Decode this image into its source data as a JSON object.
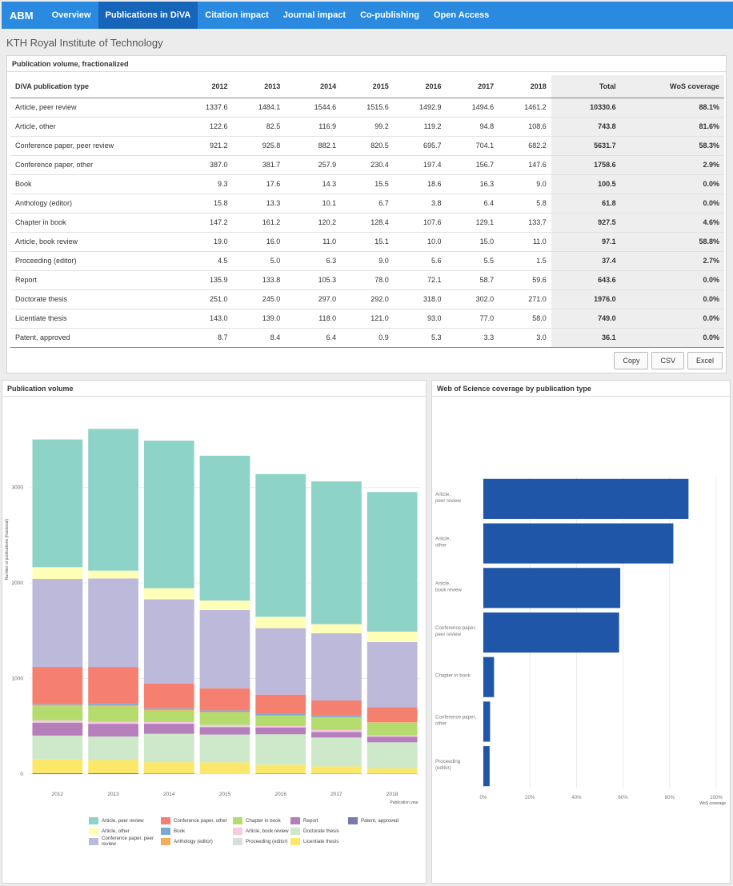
{
  "nav": {
    "brand": "ABM",
    "tabs": [
      "Overview",
      "Publications in DiVA",
      "Citation impact",
      "Journal impact",
      "Co-publishing",
      "Open Access"
    ],
    "active_tab": "Publications in DiVA"
  },
  "institution": "KTH Royal Institute of Technology",
  "table_panel": {
    "title": "Publication volume, fractionalized",
    "headers": [
      "DiVA publication type",
      "2012",
      "2013",
      "2014",
      "2015",
      "2016",
      "2017",
      "2018",
      "Total",
      "WoS coverage"
    ],
    "rows": [
      [
        "Article, peer review",
        "1337.6",
        "1484.1",
        "1544.6",
        "1515.6",
        "1492.9",
        "1494.6",
        "1461.2",
        "10330.6",
        "88.1%"
      ],
      [
        "Article, other",
        "122.6",
        "82.5",
        "116.9",
        "99.2",
        "119.2",
        "94.8",
        "108.6",
        "743.8",
        "81.6%"
      ],
      [
        "Conference paper, peer review",
        "921.2",
        "925.8",
        "882.1",
        "820.5",
        "695.7",
        "704.1",
        "682.2",
        "5631.7",
        "58.3%"
      ],
      [
        "Conference paper, other",
        "387.0",
        "381.7",
        "257.9",
        "230.4",
        "197.4",
        "156.7",
        "147.6",
        "1758.6",
        "2.9%"
      ],
      [
        "Book",
        "9.3",
        "17.6",
        "14.3",
        "15.5",
        "18.6",
        "16.3",
        "9.0",
        "100.5",
        "0.0%"
      ],
      [
        "Anthology (editor)",
        "15.8",
        "13.3",
        "10.1",
        "6.7",
        "3.8",
        "6.4",
        "5.8",
        "61.8",
        "0.0%"
      ],
      [
        "Chapter in book",
        "147.2",
        "161.2",
        "120.2",
        "128.4",
        "107.6",
        "129.1",
        "133.7",
        "927.5",
        "4.6%"
      ],
      [
        "Article, book review",
        "19.0",
        "16.0",
        "11.0",
        "15.1",
        "10.0",
        "15.0",
        "11.0",
        "97.1",
        "58.8%"
      ],
      [
        "Proceeding (editor)",
        "4.5",
        "5.0",
        "6.3",
        "9.0",
        "5.6",
        "5.5",
        "1.5",
        "37.4",
        "2.7%"
      ],
      [
        "Report",
        "135.9",
        "133.8",
        "105.3",
        "78.0",
        "72.1",
        "58.7",
        "59.6",
        "643.6",
        "0.0%"
      ],
      [
        "Doctorate thesis",
        "251.0",
        "245.0",
        "297.0",
        "292.0",
        "318.0",
        "302.0",
        "271.0",
        "1976.0",
        "0.0%"
      ],
      [
        "Licentiate thesis",
        "143.0",
        "139.0",
        "118.0",
        "121.0",
        "93.0",
        "77.0",
        "58.0",
        "749.0",
        "0.0%"
      ],
      [
        "Patent, approved",
        "8.7",
        "8.4",
        "6.4",
        "0.9",
        "5.3",
        "3.3",
        "3.0",
        "36.1",
        "0.0%"
      ]
    ],
    "buttons": [
      "Copy",
      "CSV",
      "Excel"
    ]
  },
  "volume_panel": {
    "title": "Publication volume"
  },
  "wos_panel": {
    "title": "Web of Science coverage by publication type"
  },
  "chart_data": [
    {
      "type": "bar",
      "stacked": true,
      "x": [
        "2012",
        "2013",
        "2014",
        "2015",
        "2016",
        "2017",
        "2018"
      ],
      "xlabel": "Publication year",
      "ylabel": "Number of publications (fractional)",
      "ylim": [
        0,
        3700
      ],
      "yticks": [
        0,
        1000,
        2000,
        3000
      ],
      "legend_position": "bottom",
      "series": [
        {
          "name": "Patent, approved",
          "color": "#7a7aaa",
          "values": [
            8.7,
            8.4,
            6.4,
            0.9,
            5.3,
            3.3,
            3.0
          ]
        },
        {
          "name": "Licentiate thesis",
          "color": "#fbe86a",
          "values": [
            143.0,
            139.0,
            118.0,
            121.0,
            93.0,
            77.0,
            58.0
          ]
        },
        {
          "name": "Doctorate thesis",
          "color": "#cde9c9",
          "values": [
            251.0,
            245.0,
            297.0,
            292.0,
            318.0,
            302.0,
            271.0
          ]
        },
        {
          "name": "Report",
          "color": "#b77ebc",
          "values": [
            135.9,
            133.8,
            105.3,
            78.0,
            72.1,
            58.7,
            59.6
          ]
        },
        {
          "name": "Proceeding (editor)",
          "color": "#dcdcdc",
          "values": [
            4.5,
            5.0,
            6.3,
            9.0,
            5.6,
            5.5,
            1.5
          ]
        },
        {
          "name": "Article, book review",
          "color": "#f9c9e0",
          "values": [
            19.0,
            16.0,
            11.0,
            15.1,
            10.0,
            15.0,
            11.0
          ]
        },
        {
          "name": "Chapter in book",
          "color": "#b3dc6c",
          "values": [
            147.2,
            161.2,
            120.2,
            128.4,
            107.6,
            129.1,
            133.7
          ]
        },
        {
          "name": "Anthology (editor)",
          "color": "#f7ab5c",
          "values": [
            15.8,
            13.3,
            10.1,
            6.7,
            3.8,
            6.4,
            5.8
          ]
        },
        {
          "name": "Book",
          "color": "#79a9d2",
          "values": [
            9.3,
            17.6,
            14.3,
            15.5,
            18.6,
            16.3,
            9.0
          ]
        },
        {
          "name": "Conference paper, other",
          "color": "#f68070",
          "values": [
            387.0,
            381.7,
            257.9,
            230.4,
            197.4,
            156.7,
            147.6
          ]
        },
        {
          "name": "Conference paper, peer review",
          "color": "#bdb9da",
          "values": [
            921.2,
            925.8,
            882.1,
            820.5,
            695.7,
            704.1,
            682.2
          ]
        },
        {
          "name": "Article, other",
          "color": "#ffffb8",
          "values": [
            122.6,
            82.5,
            116.9,
            99.2,
            119.2,
            94.8,
            108.6
          ]
        },
        {
          "name": "Article, peer review",
          "color": "#8dd3c7",
          "values": [
            1337.6,
            1484.1,
            1544.6,
            1515.6,
            1492.9,
            1494.6,
            1461.2
          ]
        }
      ],
      "legend_order": [
        "Article, peer review",
        "Conference paper, other",
        "Chapter in book",
        "Report",
        "Patent, approved",
        "Article, other",
        "Book",
        "Article, book review",
        "Doctorate thesis",
        "",
        "Conference paper, peer review",
        "Anthology (editor)",
        "Proceeding (editor)",
        "Licentiate thesis",
        ""
      ]
    },
    {
      "type": "bar",
      "orientation": "horizontal",
      "categories": [
        [
          "Article,",
          "peer review"
        ],
        [
          "Article,",
          "other"
        ],
        [
          "Article,",
          "book review"
        ],
        [
          "Conference paper,",
          "peer review"
        ],
        [
          "Chapter in book"
        ],
        [
          "Conference paper,",
          "other"
        ],
        [
          "Proceeding",
          "(editor)"
        ]
      ],
      "values": [
        88.1,
        81.6,
        58.8,
        58.3,
        4.6,
        2.9,
        2.7
      ],
      "xlabel": "WoS coverage",
      "xlim": [
        0,
        100
      ],
      "xticks": [
        "0%",
        "20%",
        "40%",
        "60%",
        "80%",
        "100%"
      ],
      "color": "#1f56a8"
    }
  ]
}
